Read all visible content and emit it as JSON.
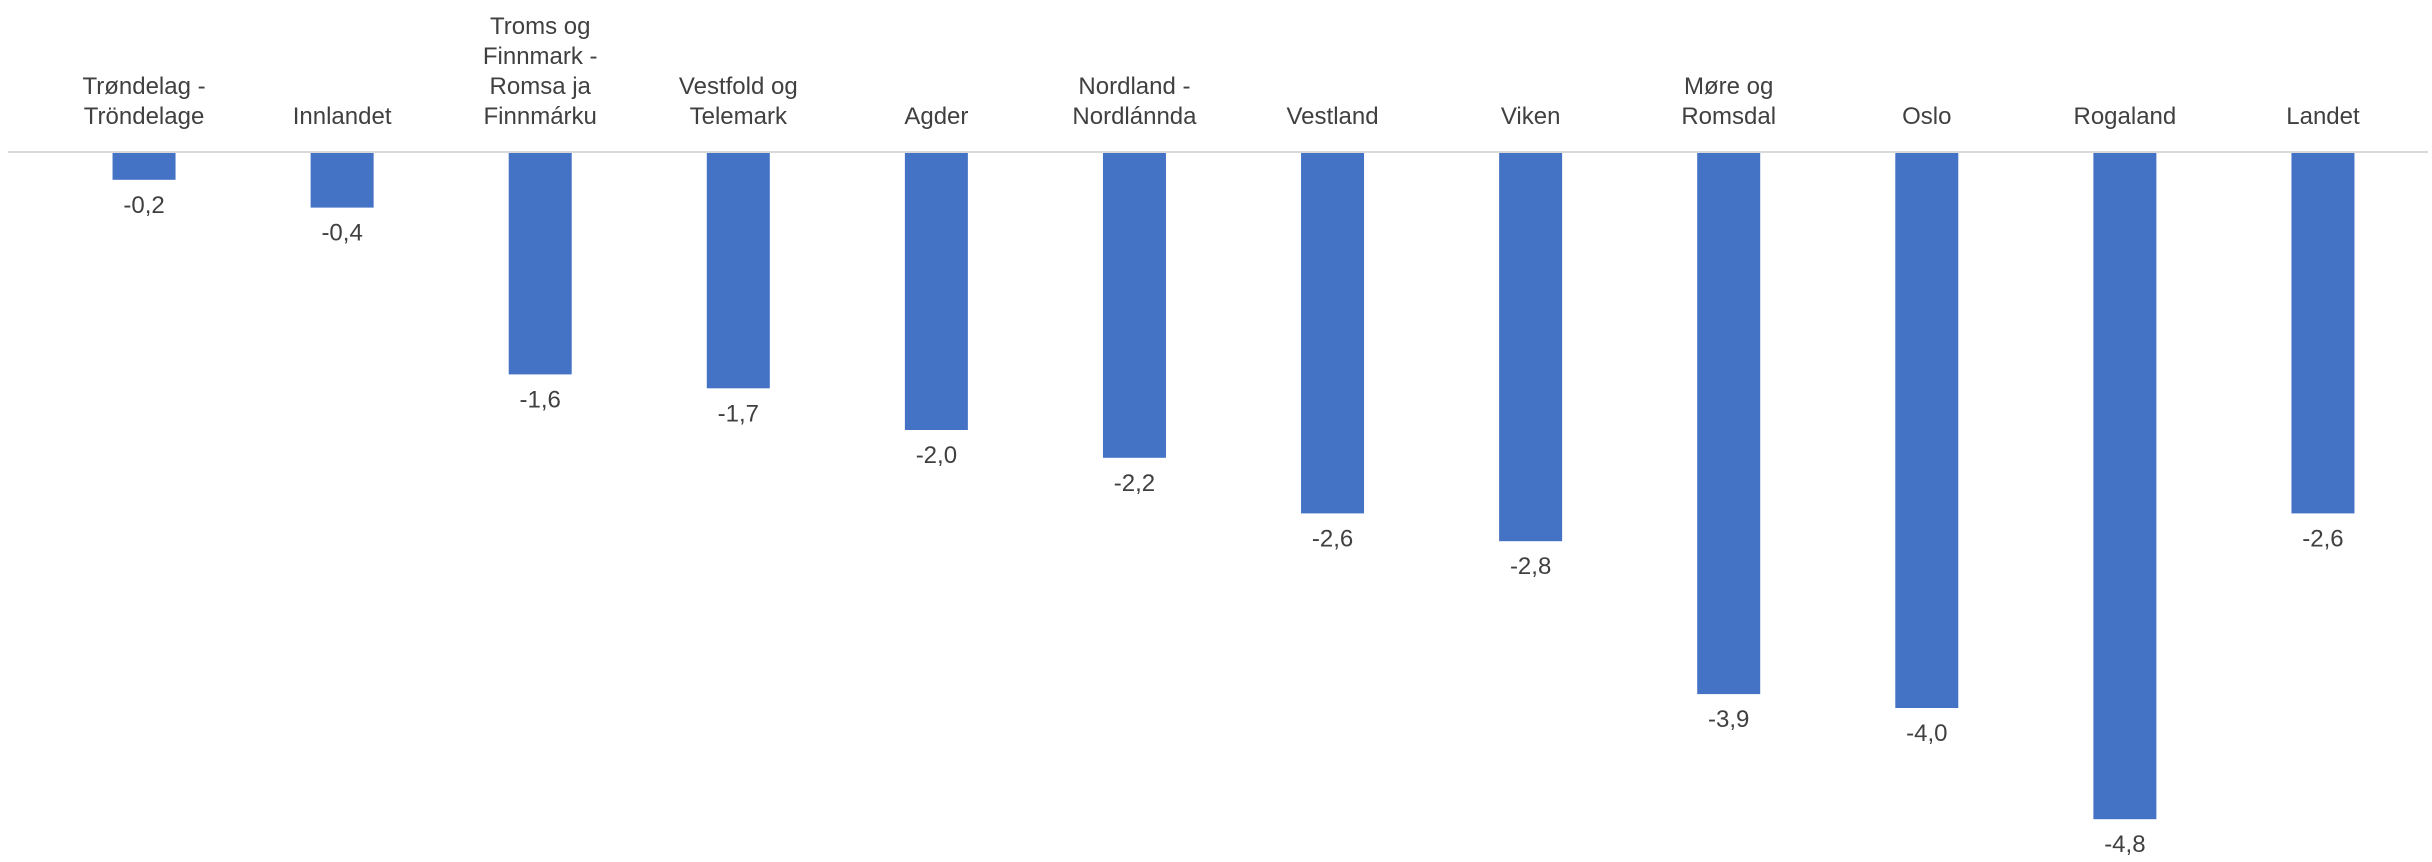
{
  "chart_data": {
    "type": "bar",
    "title": "",
    "xlabel": "",
    "ylabel": "",
    "categories": [
      [
        "Trøndelag -",
        "Tröndelage"
      ],
      [
        "Innlandet"
      ],
      [
        "Troms og",
        "Finnmark -",
        "Romsa ja",
        "Finnmárku"
      ],
      [
        "Vestfold og",
        "Telemark"
      ],
      [
        "Agder"
      ],
      [
        "Nordland -",
        "Nordlánnda"
      ],
      [
        "Vestland"
      ],
      [
        "Viken"
      ],
      [
        "Møre og",
        "Romsdal"
      ],
      [
        "Oslo"
      ],
      [
        "Rogaland"
      ],
      [
        "Landet"
      ]
    ],
    "values": [
      -0.2,
      -0.4,
      -1.6,
      -1.7,
      -2.0,
      -2.2,
      -2.6,
      -2.8,
      -3.9,
      -4.0,
      -4.8,
      -2.6
    ],
    "value_labels": [
      "-0,2",
      "-0,4",
      "-1,6",
      "-1,7",
      "-2,0",
      "-2,2",
      "-2,6",
      "-2,8",
      "-3,9",
      "-4,0",
      "-4,8",
      "-2,6"
    ],
    "ylim": [
      -4.8,
      0
    ],
    "grid": false,
    "legend": "none",
    "bar_color": "#4472C4",
    "text_color": "#404040",
    "axis_color": "#d9d9d9"
  }
}
